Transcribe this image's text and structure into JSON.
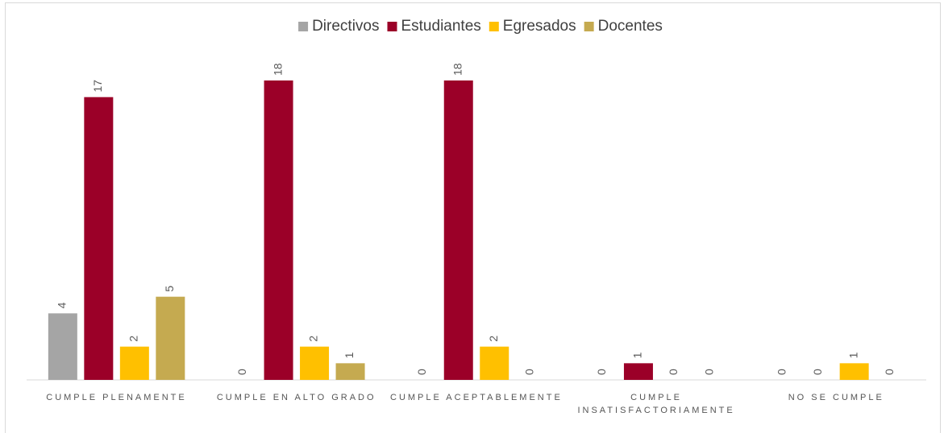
{
  "chart_data": {
    "type": "bar",
    "categories": [
      "CUMPLE PLENAMENTE",
      "CUMPLE EN ALTO GRADO",
      "CUMPLE ACEPTABLEMENTE",
      "CUMPLE INSATISFACTORIAMENTE",
      "NO SE CUMPLE"
    ],
    "series": [
      {
        "name": "Directivos",
        "color": "#a5a5a5",
        "values": [
          4,
          0,
          0,
          0,
          0
        ]
      },
      {
        "name": "Estudiantes",
        "color": "#9b0028",
        "values": [
          17,
          18,
          18,
          1,
          0
        ]
      },
      {
        "name": "Egresados",
        "color": "#ffc000",
        "values": [
          2,
          2,
          2,
          0,
          1
        ]
      },
      {
        "name": "Docentes",
        "color": "#c5aa50",
        "values": [
          5,
          1,
          0,
          0,
          0
        ]
      }
    ],
    "ylim": [
      0,
      18
    ],
    "legend": "top"
  }
}
